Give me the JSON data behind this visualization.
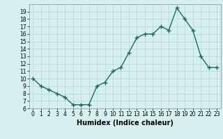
{
  "x": [
    0,
    1,
    2,
    3,
    4,
    5,
    6,
    7,
    8,
    9,
    10,
    11,
    12,
    13,
    14,
    15,
    16,
    17,
    18,
    19,
    20,
    21,
    22,
    23
  ],
  "y": [
    10,
    9,
    8.5,
    8,
    7.5,
    6.5,
    6.5,
    6.5,
    9,
    9.5,
    11,
    11.5,
    13.5,
    15.5,
    16,
    16,
    17,
    16.5,
    19.5,
    18,
    16.5,
    13,
    11.5,
    11.5
  ],
  "line_color": "#1a6b5a",
  "marker": "+",
  "markersize": 4,
  "linewidth": 1.0,
  "bg_color": "#d6f0f0",
  "grid_color": "#b8d4d4",
  "xlabel": "Humidex (Indice chaleur)",
  "ylim": [
    6,
    20
  ],
  "xlim": [
    -0.5,
    23.5
  ],
  "yticks": [
    6,
    7,
    8,
    9,
    10,
    11,
    12,
    13,
    14,
    15,
    16,
    17,
    18,
    19
  ],
  "xticks": [
    0,
    1,
    2,
    3,
    4,
    5,
    6,
    7,
    8,
    9,
    10,
    11,
    12,
    13,
    14,
    15,
    16,
    17,
    18,
    19,
    20,
    21,
    22,
    23
  ],
  "tick_fontsize": 5.5,
  "xlabel_fontsize": 7
}
